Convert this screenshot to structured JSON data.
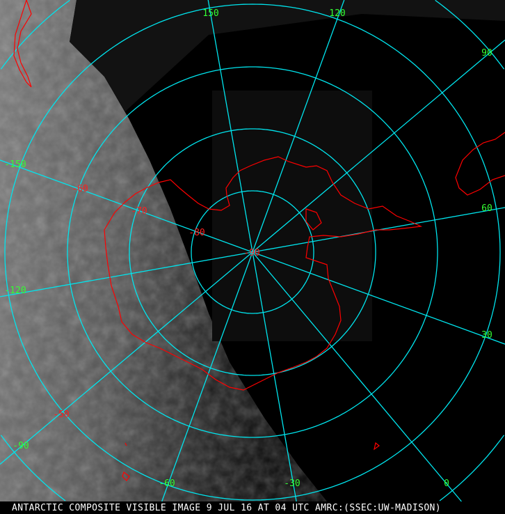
{
  "map": {
    "projection": "polar stereographic (south pole)",
    "colors": {
      "grid": "#00e5ee",
      "coastline": "#ff0000",
      "lon_labels": "#33ff33",
      "lat_labels": "#ff2020",
      "caption": "#ffffff"
    },
    "longitude_labels": [
      "150",
      "120",
      "90",
      "60",
      "30",
      "0",
      "-30",
      "-60",
      "-90",
      "-120",
      "-150"
    ],
    "latitude_labels": [
      "-50",
      "-60",
      "-70",
      "-80",
      "-90"
    ]
  },
  "caption": {
    "marker": "3",
    "text": "ANTARCTIC COMPOSITE VISIBLE IMAGE 9 JUL 16 AT 04 UTC AMRC:(SSEC:UW-MADISON)"
  }
}
